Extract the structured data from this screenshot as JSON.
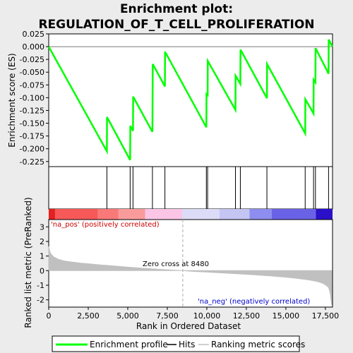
{
  "chart_data": {
    "type": "line",
    "title_line1": "Enrichment plot:",
    "title_line2": "REGULATION_OF_T_CELL_PROLIFERATION",
    "es_panel": {
      "ylabel": "Enrichment score (ES)",
      "ylim": [
        -0.235,
        0.025
      ],
      "yticks": [
        "0.025",
        "0.000",
        "-0.025",
        "-0.050",
        "-0.075",
        "-0.100",
        "-0.125",
        "-0.150",
        "-0.175",
        "-0.200",
        "-0.225"
      ],
      "ytick_values": [
        0.025,
        0.0,
        -0.025,
        -0.05,
        -0.075,
        -0.1,
        -0.125,
        -0.15,
        -0.175,
        -0.2,
        -0.225
      ],
      "series": [
        {
          "name": "Enrichment profile",
          "color": "#00ff00",
          "x": [
            0,
            3680,
            3690,
            5150,
            5160,
            5330,
            5340,
            6560,
            6570,
            6580,
            7350,
            7360,
            9970,
            9980,
            10050,
            10060,
            11810,
            11820,
            12120,
            12130,
            13800,
            13810,
            16220,
            16230,
            16750,
            16760,
            16870,
            16880,
            17700,
            17710,
            17950
          ],
          "y": [
            0.0,
            -0.205,
            -0.138,
            -0.222,
            -0.155,
            -0.165,
            -0.098,
            -0.167,
            -0.1,
            -0.034,
            -0.078,
            -0.01,
            -0.158,
            -0.093,
            -0.095,
            -0.028,
            -0.124,
            -0.057,
            -0.073,
            -0.006,
            -0.101,
            -0.034,
            -0.17,
            -0.103,
            -0.131,
            -0.065,
            -0.07,
            -0.003,
            -0.053,
            0.014,
            0.0
          ]
        }
      ]
    },
    "hits": {
      "name": "Hits",
      "color": "#000000",
      "positions": [
        3680,
        5150,
        5330,
        6560,
        7350,
        9970,
        10050,
        11810,
        12120,
        13800,
        16220,
        16750,
        16870,
        17700
      ]
    },
    "ranked_panel": {
      "name": "Ranking metric scores",
      "ylabel": "Ranked list metric (PreRanked)",
      "ylim": [
        -2.5,
        3.5
      ],
      "yticks": [
        "3",
        "2",
        "1",
        "0",
        "-1",
        "-2"
      ],
      "ytick_values": [
        3,
        2,
        1,
        0,
        -1,
        -2
      ],
      "fill_color": "#c0c0c0",
      "profile_x": [
        0,
        100,
        300,
        600,
        1000,
        1500,
        2000,
        2500,
        3000,
        4000,
        5000,
        6000,
        7000,
        8000,
        8480,
        9000,
        10000,
        11000,
        12000,
        13000,
        14000,
        15000,
        15500,
        16000,
        16500,
        17000,
        17300,
        17500,
        17700,
        17800,
        17900
      ],
      "profile_y": [
        1.65,
        1.2,
        0.95,
        0.78,
        0.66,
        0.58,
        0.52,
        0.47,
        0.42,
        0.33,
        0.24,
        0.16,
        0.09,
        0.03,
        0.0,
        -0.04,
        -0.1,
        -0.16,
        -0.22,
        -0.29,
        -0.36,
        -0.45,
        -0.5,
        -0.57,
        -0.64,
        -0.75,
        -0.85,
        -0.97,
        -1.15,
        -1.5,
        -2.35
      ],
      "pos_label": "'na_pos' (positively correlated)",
      "pos_color": "#cc0000",
      "neg_label": "'na_neg' (negatively correlated)",
      "neg_color": "#0000cc",
      "zero_cross_label": "Zero cross at 8480",
      "zero_cross": 8480
    },
    "color_bar": {
      "segments": [
        {
          "start": 0,
          "end": 400,
          "color": "#e42020"
        },
        {
          "start": 400,
          "end": 3100,
          "color": "#f75858"
        },
        {
          "start": 3100,
          "end": 4400,
          "color": "#f97979"
        },
        {
          "start": 4400,
          "end": 6100,
          "color": "#fa9b9b"
        },
        {
          "start": 6100,
          "end": 8450,
          "color": "#fbc6e6"
        },
        {
          "start": 8450,
          "end": 10800,
          "color": "#dcdcf8"
        },
        {
          "start": 10800,
          "end": 12700,
          "color": "#c5c5f3"
        },
        {
          "start": 12700,
          "end": 14100,
          "color": "#8e8ef0"
        },
        {
          "start": 14100,
          "end": 16900,
          "color": "#6a62e6"
        },
        {
          "start": 16900,
          "end": 17950,
          "color": "#2a10c8"
        }
      ]
    },
    "xlabel": "Rank in Ordered Dataset",
    "xlim": [
      0,
      17950
    ],
    "xticks": [
      "0",
      "2,500",
      "5,000",
      "7,500",
      "10,000",
      "12,500",
      "15,000",
      "17,500"
    ],
    "xtick_values": [
      0,
      2500,
      5000,
      7500,
      10000,
      12500,
      15000,
      17500
    ],
    "legend": {
      "placement": "bottom",
      "entries": [
        "Enrichment profile",
        "Hits",
        "Ranking metric scores"
      ]
    }
  }
}
